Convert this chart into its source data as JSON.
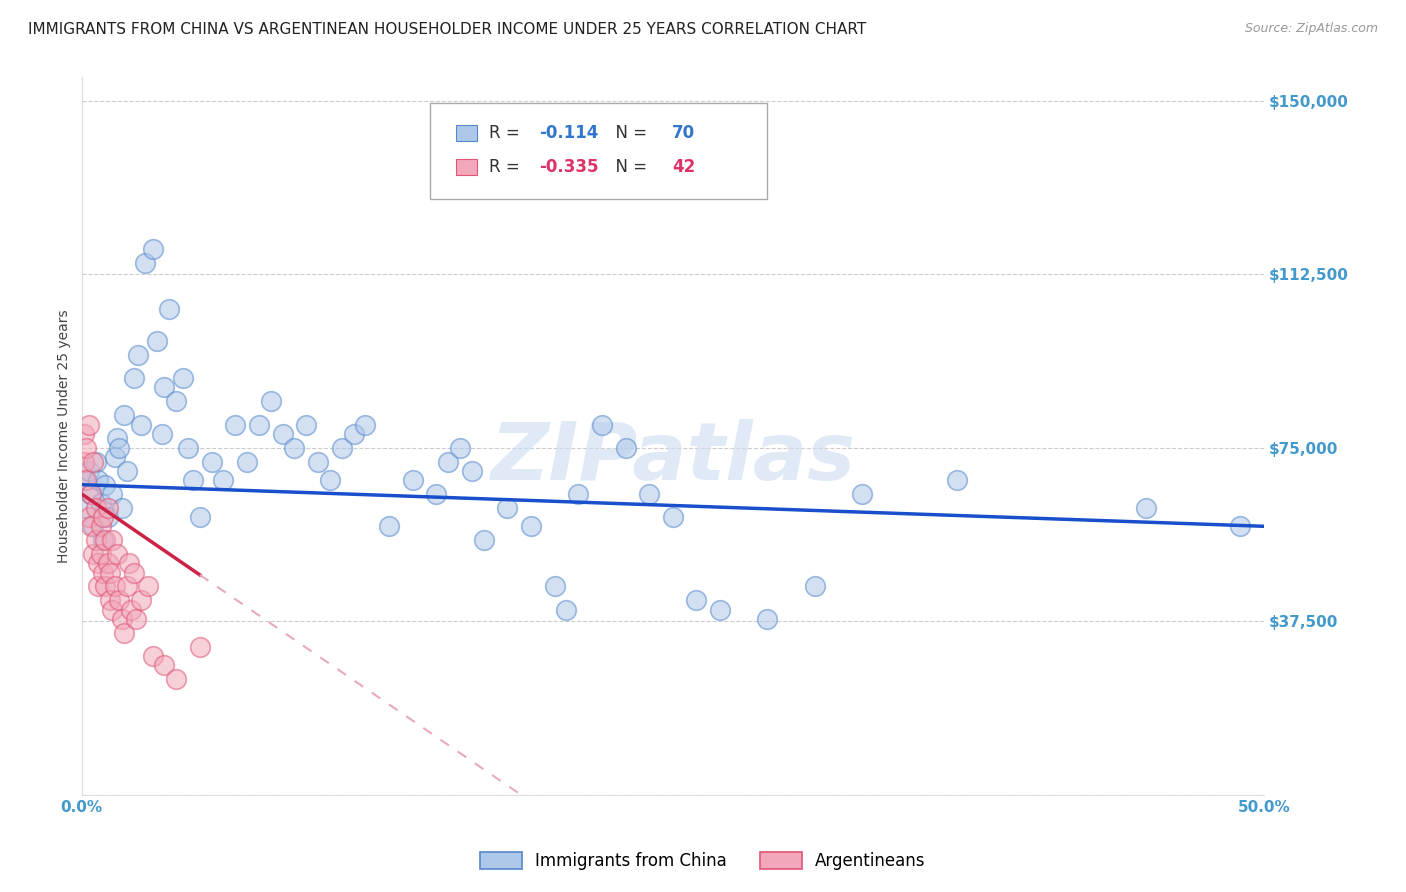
{
  "title": "IMMIGRANTS FROM CHINA VS ARGENTINEAN HOUSEHOLDER INCOME UNDER 25 YEARS CORRELATION CHART",
  "source": "Source: ZipAtlas.com",
  "ylabel_label": "Householder Income Under 25 years",
  "xlim": [
    0.0,
    0.5
  ],
  "ylim": [
    0,
    155000
  ],
  "yticks": [
    0,
    37500,
    75000,
    112500,
    150000
  ],
  "ytick_labels": [
    "",
    "$37,500",
    "$75,000",
    "$112,500",
    "$150,000"
  ],
  "xticks": [
    0.0,
    0.1,
    0.2,
    0.3,
    0.4,
    0.5
  ],
  "xtick_labels": [
    "0.0%",
    "",
    "",
    "",
    "",
    "50.0%"
  ],
  "legend_labels": [
    "Immigrants from China",
    "Argentineans"
  ],
  "china_color": "#adc8e8",
  "argentina_color": "#f2a8ba",
  "china_edge_color": "#5588cc",
  "argentina_edge_color": "#e05575",
  "trend_china_color": "#1a4fcc",
  "trend_argentina_color": "#cc2244",
  "trend_argentina_dashed_color": "#e8aabb",
  "watermark": "ZIPatlas",
  "R_china": -0.114,
  "N_china": 70,
  "R_argentina": -0.335,
  "N_argentina": 42,
  "china_x": [
    0.001,
    0.002,
    0.003,
    0.004,
    0.005,
    0.006,
    0.007,
    0.008,
    0.009,
    0.01,
    0.011,
    0.013,
    0.014,
    0.015,
    0.016,
    0.017,
    0.018,
    0.019,
    0.022,
    0.024,
    0.025,
    0.027,
    0.03,
    0.032,
    0.034,
    0.035,
    0.037,
    0.04,
    0.043,
    0.045,
    0.047,
    0.05,
    0.055,
    0.06,
    0.065,
    0.07,
    0.075,
    0.08,
    0.085,
    0.09,
    0.095,
    0.1,
    0.105,
    0.11,
    0.115,
    0.12,
    0.13,
    0.14,
    0.15,
    0.155,
    0.16,
    0.165,
    0.17,
    0.18,
    0.19,
    0.2,
    0.205,
    0.21,
    0.22,
    0.23,
    0.24,
    0.25,
    0.26,
    0.27,
    0.29,
    0.31,
    0.33,
    0.37,
    0.45,
    0.49
  ],
  "china_y": [
    68000,
    62000,
    70000,
    65000,
    58000,
    72000,
    68000,
    63000,
    55000,
    67000,
    60000,
    65000,
    73000,
    77000,
    75000,
    62000,
    82000,
    70000,
    90000,
    95000,
    80000,
    115000,
    118000,
    98000,
    78000,
    88000,
    105000,
    85000,
    90000,
    75000,
    68000,
    60000,
    72000,
    68000,
    80000,
    72000,
    80000,
    85000,
    78000,
    75000,
    80000,
    72000,
    68000,
    75000,
    78000,
    80000,
    58000,
    68000,
    65000,
    72000,
    75000,
    70000,
    55000,
    62000,
    58000,
    45000,
    40000,
    65000,
    80000,
    75000,
    65000,
    60000,
    42000,
    40000,
    38000,
    45000,
    65000,
    68000,
    62000,
    58000
  ],
  "argentina_x": [
    0.001,
    0.001,
    0.002,
    0.002,
    0.003,
    0.003,
    0.004,
    0.004,
    0.005,
    0.005,
    0.006,
    0.006,
    0.007,
    0.007,
    0.008,
    0.008,
    0.009,
    0.009,
    0.01,
    0.01,
    0.011,
    0.011,
    0.012,
    0.012,
    0.013,
    0.013,
    0.014,
    0.015,
    0.016,
    0.017,
    0.018,
    0.019,
    0.02,
    0.021,
    0.022,
    0.023,
    0.025,
    0.028,
    0.03,
    0.035,
    0.04,
    0.05
  ],
  "argentina_y": [
    78000,
    72000,
    75000,
    68000,
    80000,
    60000,
    65000,
    58000,
    52000,
    72000,
    55000,
    62000,
    50000,
    45000,
    58000,
    52000,
    48000,
    60000,
    45000,
    55000,
    50000,
    62000,
    42000,
    48000,
    40000,
    55000,
    45000,
    52000,
    42000,
    38000,
    35000,
    45000,
    50000,
    40000,
    48000,
    38000,
    42000,
    45000,
    30000,
    28000,
    25000,
    32000
  ],
  "marker_size": 200,
  "alpha": 0.55,
  "background_color": "#ffffff",
  "grid_color": "#cccccc",
  "title_fontsize": 11,
  "axis_label_fontsize": 10,
  "tick_fontsize": 11,
  "legend_fontsize": 12,
  "source_fontsize": 9
}
